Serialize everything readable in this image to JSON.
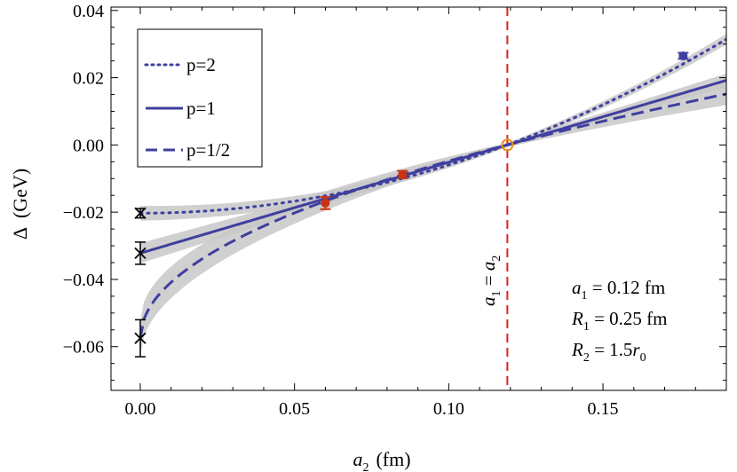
{
  "chart_data": {
    "type": "line",
    "xlabel_var": "a",
    "xlabel_sub": "2",
    "xlabel_unit": "(fm)",
    "ylabel_sym": "Δ",
    "ylabel_unit": "(GeV)",
    "xlim": [
      -0.0095,
      0.19
    ],
    "ylim": [
      -0.073,
      0.041
    ],
    "x_ticks": [
      0.0,
      0.05,
      0.1,
      0.15
    ],
    "x_tick_labels": [
      "0.00",
      "0.05",
      "0.10",
      "0.15"
    ],
    "y_ticks": [
      -0.06,
      -0.04,
      -0.02,
      0.0,
      0.02,
      0.04
    ],
    "y_tick_labels": [
      "−0.06",
      "−0.04",
      "−0.02",
      "0.00",
      "0.02",
      "0.04"
    ],
    "series": [
      {
        "name": "p=2",
        "style": "dotted",
        "p": 2,
        "intercept": -0.0203,
        "band_halfwidth": 0.0016
      },
      {
        "name": "p=1",
        "style": "solid",
        "p": 1,
        "intercept": -0.0322,
        "band_halfwidth": 0.0024
      },
      {
        "name": "p=1/2",
        "style": "dashed",
        "p": 0.5,
        "intercept": -0.0575,
        "band_halfwidth": 0.0045
      }
    ],
    "data_points": [
      {
        "x": 0.06,
        "y": -0.0173,
        "err": 0.0018,
        "color": "#cc3311",
        "marker": "dot"
      },
      {
        "x": 0.085,
        "y": -0.0088,
        "err": 0.0011,
        "color": "#cc3311",
        "marker": "dot"
      },
      {
        "x": 0.119,
        "y": 0.0,
        "err": 0.0,
        "color": "#e8941a",
        "marker": "open-circle"
      },
      {
        "x": 0.176,
        "y": 0.0265,
        "err": 0.0009,
        "color": "#3f3f9f",
        "marker": "dot"
      }
    ],
    "extrapolated_points": [
      {
        "x": 0.0,
        "y": -0.0203,
        "err": 0.0014
      },
      {
        "x": 0.0,
        "y": -0.0322,
        "err": 0.0033
      },
      {
        "x": 0.0,
        "y": -0.0575,
        "err": 0.0055
      }
    ],
    "vline": {
      "x": 0.119,
      "label_left": "a",
      "label_sub1": "1",
      "label_eq": " = ",
      "label_right": "a",
      "label_sub2": "2",
      "color": "#dd2222"
    },
    "annotations": [
      {
        "var": "a",
        "sub": "1",
        "rest": " = 0.12 fm"
      },
      {
        "var": "R",
        "sub": "1",
        "rest": " = 0.25 fm"
      },
      {
        "var": "R",
        "sub": "2",
        "rest": " = 1.5",
        "var2": "r",
        "sub2": "0"
      }
    ],
    "line_color": "#3f3f9f",
    "band_color": "#c8c8c8"
  }
}
